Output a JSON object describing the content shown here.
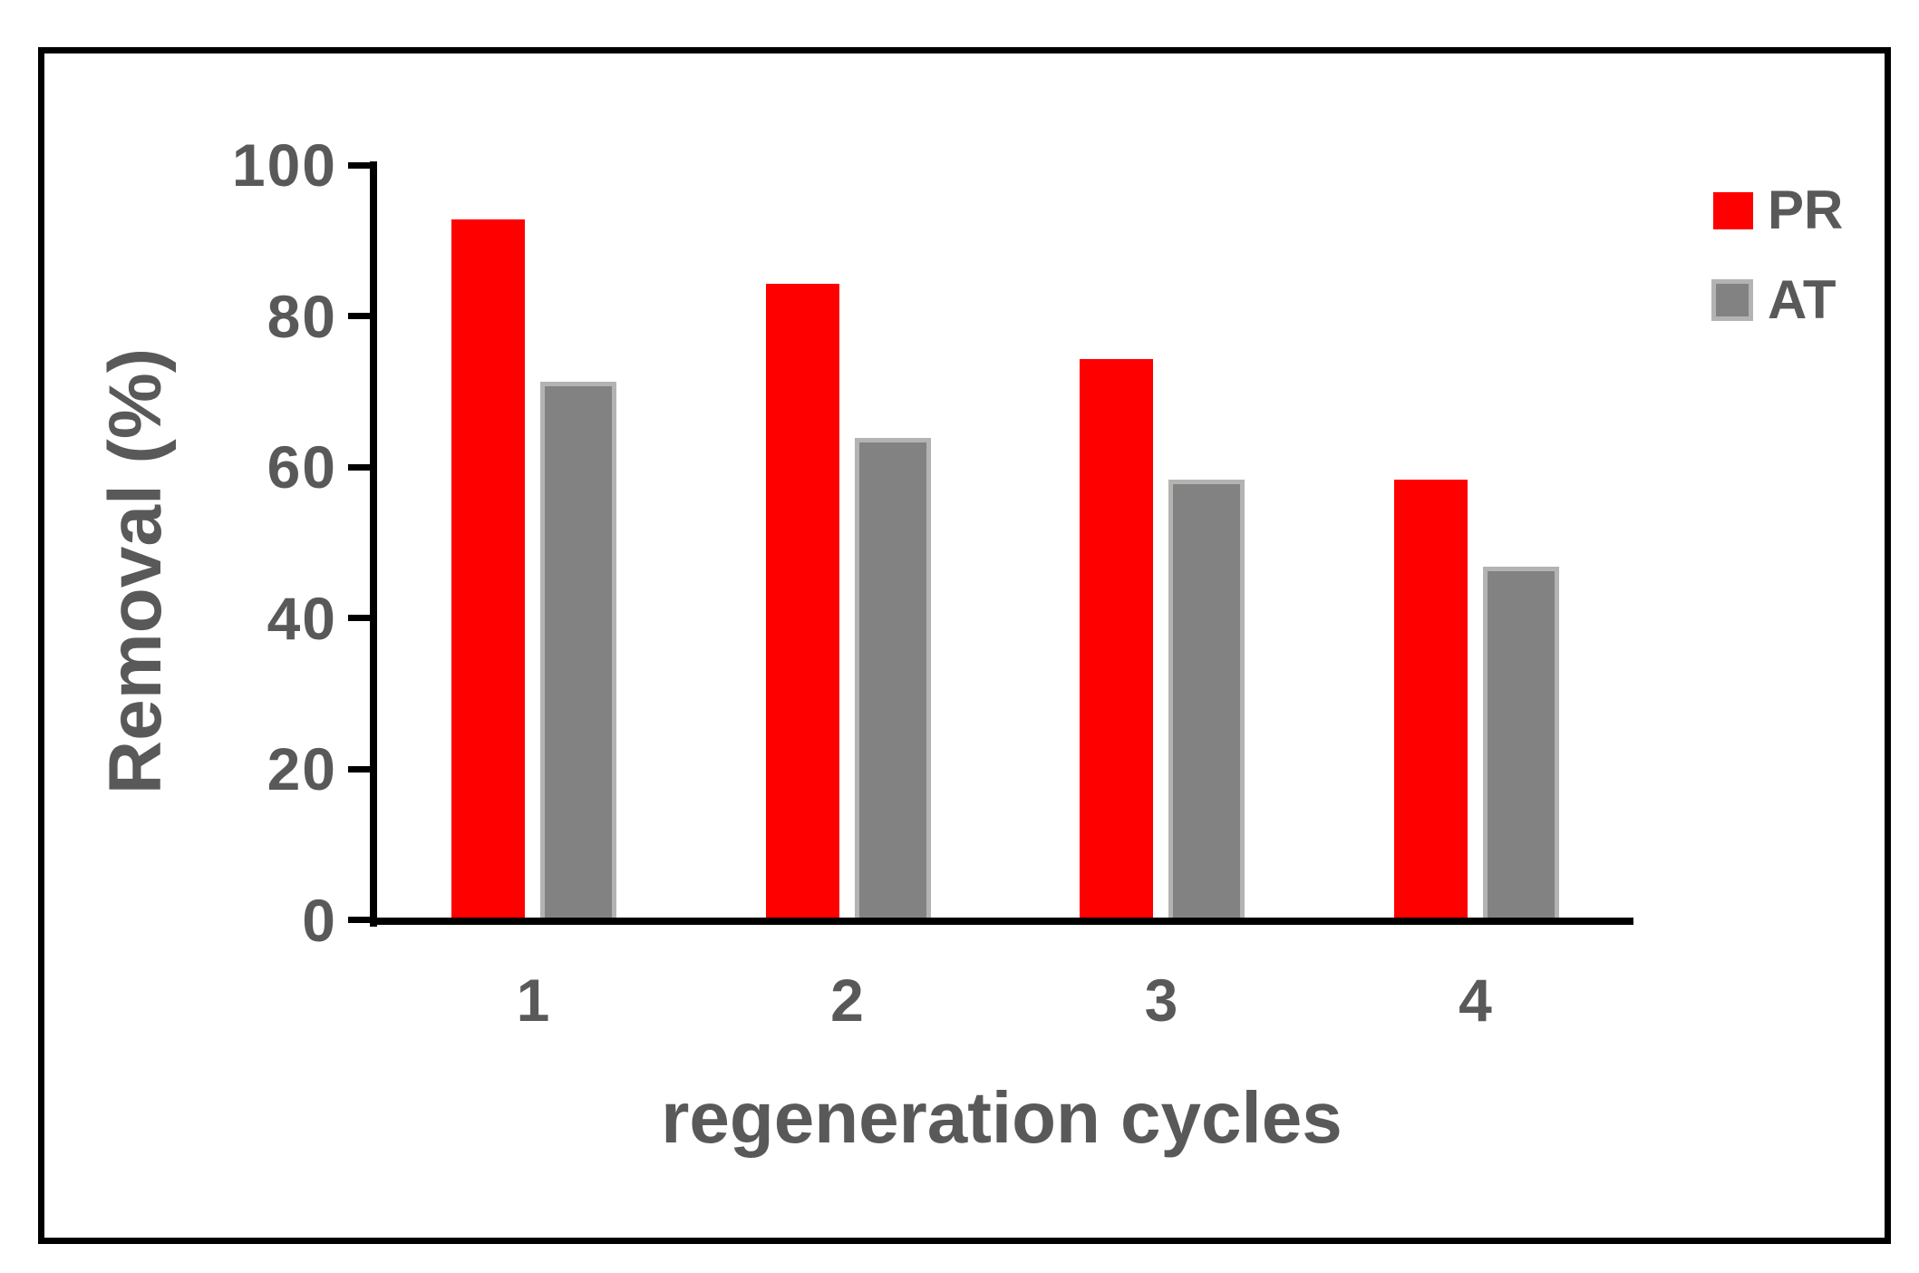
{
  "figure": {
    "background": "#ffffff",
    "border_color": "#000000",
    "axis_color": "#000000",
    "text_color": "#595959"
  },
  "chart_data": {
    "type": "bar",
    "title": "",
    "categories": [
      "1",
      "2",
      "3",
      "4"
    ],
    "series": [
      {
        "name": "PR",
        "color": "#ff0000",
        "values": [
          93,
          84.5,
          74.5,
          58.5
        ]
      },
      {
        "name": "AT",
        "color": "#828282",
        "border_color": "#b5b2b2",
        "values": [
          71.5,
          64,
          58.5,
          47
        ]
      }
    ],
    "xlabel": "regeneration cycles",
    "ylabel": "Removal (%)",
    "ylim": [
      0,
      100
    ],
    "yticks": [
      0,
      20,
      40,
      60,
      80,
      100
    ],
    "grid": false,
    "legend_position": "top-right"
  }
}
